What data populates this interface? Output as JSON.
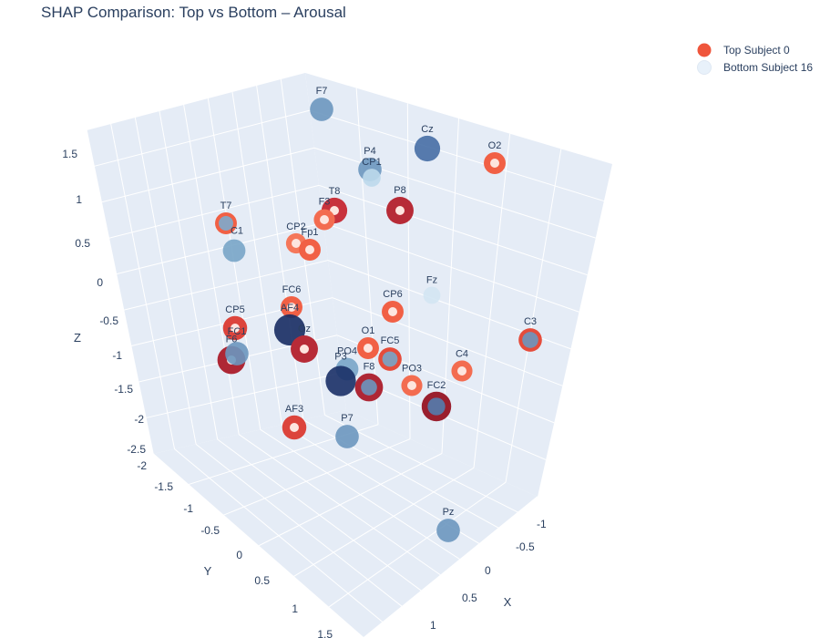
{
  "chart_data": {
    "type": "scatter3d",
    "title": "SHAP Comparison: Top vs Bottom – Arousal",
    "axes": {
      "x": {
        "label": "X",
        "ticks": [
          "-1",
          "-0.5",
          "0",
          "0.5",
          "1"
        ]
      },
      "y": {
        "label": "Y",
        "ticks": [
          "-2",
          "-1.5",
          "-1",
          "-0.5",
          "0",
          "0.5",
          "1",
          "1.5"
        ]
      },
      "z": {
        "label": "Z",
        "ticks": [
          "-2.5",
          "-2",
          "-1.5",
          "-1",
          "-0.5",
          "0",
          "0.5",
          "1",
          "1.5"
        ]
      }
    },
    "series": [
      {
        "name": "Top Subject 0",
        "color": "#ef553b"
      },
      {
        "name": "Bottom Subject 16",
        "color": "#e8f1fa"
      }
    ],
    "electrodes": [
      {
        "label": "F7",
        "top_value": null,
        "bottom_value": 0.45
      },
      {
        "label": "Cz",
        "top_value": null,
        "bottom_value": 0.6
      },
      {
        "label": "O2",
        "top_value": 0.35,
        "bottom_value": null
      },
      {
        "label": "P4",
        "top_value": null,
        "bottom_value": 0.45
      },
      {
        "label": "CP1",
        "top_value": null,
        "bottom_value": 0.1
      },
      {
        "label": "T8",
        "top_value": 0.6,
        "bottom_value": null
      },
      {
        "label": "P8",
        "top_value": 0.7,
        "bottom_value": null
      },
      {
        "label": "F3",
        "top_value": 0.3,
        "bottom_value": null
      },
      {
        "label": "T7",
        "top_value": 0.35,
        "bottom_value": 0.35
      },
      {
        "label": "CP2",
        "top_value": 0.25,
        "bottom_value": null
      },
      {
        "label": "Fp1",
        "top_value": 0.35,
        "bottom_value": null
      },
      {
        "label": "C1",
        "top_value": null,
        "bottom_value": 0.4
      },
      {
        "label": "Fz",
        "top_value": null,
        "bottom_value": 0.05
      },
      {
        "label": "FC6",
        "top_value": 0.35,
        "bottom_value": null
      },
      {
        "label": "CP6",
        "top_value": 0.35,
        "bottom_value": null
      },
      {
        "label": "CP5",
        "top_value": 0.5,
        "bottom_value": null
      },
      {
        "label": "AF4",
        "top_value": null,
        "bottom_value": 0.95
      },
      {
        "label": "Oz",
        "top_value": 0.7,
        "bottom_value": null
      },
      {
        "label": "F6",
        "top_value": 0.75,
        "bottom_value": null
      },
      {
        "label": "O1",
        "top_value": 0.35,
        "bottom_value": null
      },
      {
        "label": "FC5",
        "top_value": 0.45,
        "bottom_value": 0.4
      },
      {
        "label": "C3",
        "top_value": 0.45,
        "bottom_value": 0.45
      },
      {
        "label": "PO4",
        "top_value": null,
        "bottom_value": 0.4
      },
      {
        "label": "P3",
        "top_value": null,
        "bottom_value": 0.9
      },
      {
        "label": "F8",
        "top_value": 0.75,
        "bottom_value": 0.45
      },
      {
        "label": "PO3",
        "top_value": 0.3,
        "bottom_value": null
      },
      {
        "label": "C4",
        "top_value": 0.3,
        "bottom_value": null
      },
      {
        "label": "FC2",
        "top_value": 0.85,
        "bottom_value": 0.55
      },
      {
        "label": "AF3",
        "top_value": 0.5,
        "bottom_value": null
      },
      {
        "label": "P7",
        "top_value": null,
        "bottom_value": 0.45
      },
      {
        "label": "Pz",
        "top_value": null,
        "bottom_value": 0.45
      },
      {
        "label": "FC1",
        "top_value": null,
        "bottom_value": 0.45
      }
    ]
  }
}
